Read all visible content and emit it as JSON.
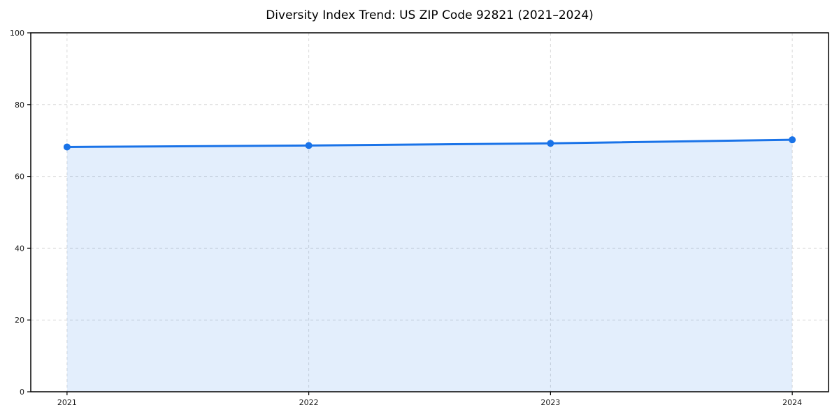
{
  "page": {
    "background": "#ffffff"
  },
  "chart_data": {
    "type": "line",
    "title": "Diversity Index Trend: US ZIP Code 92821 (2021–2024)",
    "categories": [
      "2021",
      "2022",
      "2023",
      "2024"
    ],
    "series": [
      {
        "name": "Diversity Index",
        "values": [
          68.2,
          68.6,
          69.2,
          70.2
        ]
      }
    ],
    "xlabel": "",
    "ylabel": "",
    "ylim": [
      0,
      100
    ],
    "yticks": [
      0,
      20,
      40,
      60,
      80,
      100
    ],
    "grid": true,
    "grid_style": "dashed",
    "area_fill": true,
    "legend_position": "none",
    "marker": "circle",
    "colors": {
      "line": "#1a73e8",
      "marker": "#1a73e8",
      "area_fill": "rgba(26,115,232,0.12)",
      "grid": "#d9d9d9",
      "axis": "#000000",
      "tick_label": "#1a1a1a",
      "title": "#000000"
    }
  }
}
